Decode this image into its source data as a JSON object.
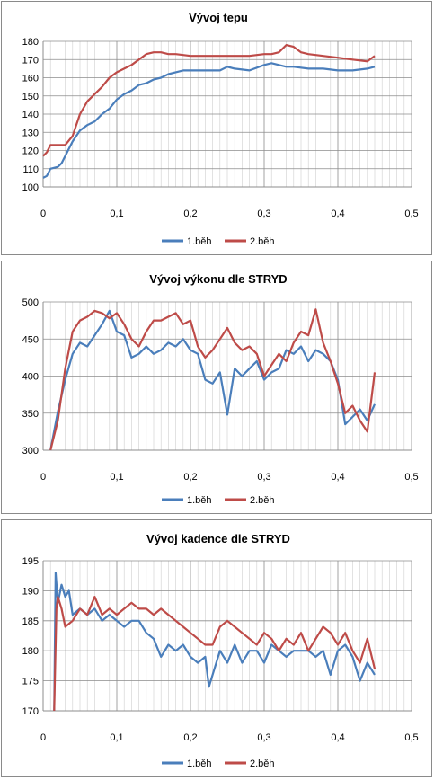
{
  "chart_data": [
    {
      "type": "line",
      "title": "Vývoj tepu",
      "xlim": [
        0,
        0.5
      ],
      "ylim": [
        100,
        180
      ],
      "xticks": [
        "0",
        "0,1",
        "0,2",
        "0,3",
        "0,4",
        "0,5"
      ],
      "yticks": [
        "100",
        "110",
        "120",
        "130",
        "140",
        "150",
        "160",
        "170",
        "180"
      ],
      "grid": true,
      "legend": "bottom",
      "series": [
        {
          "name": "1.běh",
          "color": "#4a7ebb",
          "x": [
            0,
            0.005,
            0.01,
            0.02,
            0.025,
            0.03,
            0.04,
            0.05,
            0.06,
            0.07,
            0.08,
            0.09,
            0.1,
            0.11,
            0.12,
            0.13,
            0.14,
            0.15,
            0.16,
            0.17,
            0.18,
            0.19,
            0.2,
            0.22,
            0.24,
            0.25,
            0.26,
            0.28,
            0.3,
            0.31,
            0.32,
            0.33,
            0.34,
            0.36,
            0.38,
            0.4,
            0.42,
            0.44,
            0.45
          ],
          "y": [
            105,
            106,
            110,
            111,
            113,
            117,
            125,
            131,
            134,
            136,
            140,
            143,
            148,
            151,
            153,
            156,
            157,
            159,
            160,
            162,
            163,
            164,
            164,
            164,
            164,
            166,
            165,
            164,
            167,
            168,
            167,
            166,
            166,
            165,
            165,
            164,
            164,
            165,
            166
          ]
        },
        {
          "name": "2.běh",
          "color": "#be4b48",
          "x": [
            0,
            0.005,
            0.01,
            0.02,
            0.03,
            0.04,
            0.05,
            0.06,
            0.07,
            0.08,
            0.09,
            0.1,
            0.11,
            0.12,
            0.13,
            0.14,
            0.15,
            0.16,
            0.17,
            0.18,
            0.2,
            0.22,
            0.24,
            0.26,
            0.28,
            0.3,
            0.31,
            0.32,
            0.33,
            0.34,
            0.35,
            0.36,
            0.38,
            0.4,
            0.42,
            0.44,
            0.45
          ],
          "y": [
            117,
            119,
            123,
            123,
            123,
            128,
            140,
            147,
            151,
            155,
            160,
            163,
            165,
            167,
            170,
            173,
            174,
            174,
            173,
            173,
            172,
            172,
            172,
            172,
            172,
            173,
            173,
            174,
            178,
            177,
            174,
            173,
            172,
            171,
            170,
            169,
            172
          ]
        }
      ]
    },
    {
      "type": "line",
      "title": "Vývoj výkonu dle STRYD",
      "xlim": [
        0,
        0.5
      ],
      "ylim": [
        300,
        500
      ],
      "xticks": [
        "0",
        "0,1",
        "0,2",
        "0,3",
        "0,4",
        "0,5"
      ],
      "yticks": [
        "300",
        "350",
        "400",
        "450",
        "500"
      ],
      "grid": true,
      "legend": "bottom",
      "series": [
        {
          "name": "1.běh",
          "color": "#4a7ebb",
          "x": [
            0.01,
            0.02,
            0.03,
            0.04,
            0.05,
            0.06,
            0.07,
            0.08,
            0.09,
            0.1,
            0.11,
            0.12,
            0.13,
            0.14,
            0.15,
            0.16,
            0.17,
            0.18,
            0.19,
            0.2,
            0.21,
            0.22,
            0.23,
            0.24,
            0.25,
            0.26,
            0.27,
            0.28,
            0.29,
            0.3,
            0.31,
            0.32,
            0.33,
            0.34,
            0.35,
            0.36,
            0.37,
            0.38,
            0.39,
            0.4,
            0.41,
            0.42,
            0.43,
            0.44,
            0.45
          ],
          "y": [
            300,
            352,
            395,
            430,
            445,
            440,
            455,
            470,
            488,
            460,
            455,
            425,
            430,
            440,
            430,
            435,
            445,
            440,
            450,
            435,
            430,
            395,
            390,
            405,
            348,
            410,
            400,
            410,
            420,
            395,
            405,
            410,
            435,
            430,
            440,
            420,
            435,
            430,
            420,
            395,
            335,
            345,
            355,
            340,
            362
          ]
        },
        {
          "name": "2.běh",
          "color": "#be4b48",
          "x": [
            0.01,
            0.02,
            0.03,
            0.04,
            0.05,
            0.06,
            0.07,
            0.08,
            0.09,
            0.1,
            0.11,
            0.12,
            0.13,
            0.14,
            0.15,
            0.16,
            0.17,
            0.18,
            0.19,
            0.2,
            0.21,
            0.22,
            0.23,
            0.24,
            0.25,
            0.26,
            0.27,
            0.28,
            0.29,
            0.3,
            0.31,
            0.32,
            0.33,
            0.34,
            0.35,
            0.36,
            0.37,
            0.38,
            0.39,
            0.4,
            0.41,
            0.42,
            0.43,
            0.44,
            0.45
          ],
          "y": [
            300,
            340,
            410,
            460,
            475,
            480,
            488,
            485,
            478,
            485,
            470,
            450,
            440,
            460,
            475,
            475,
            480,
            485,
            470,
            475,
            440,
            425,
            435,
            450,
            465,
            445,
            435,
            440,
            430,
            400,
            415,
            430,
            420,
            445,
            460,
            455,
            490,
            445,
            420,
            390,
            350,
            360,
            340,
            325,
            405
          ]
        }
      ]
    },
    {
      "type": "line",
      "title": "Vývoj kadence dle STRYD",
      "xlim": [
        0,
        0.5
      ],
      "ylim": [
        170,
        195
      ],
      "xticks": [
        "0",
        "0,1",
        "0,2",
        "0,3",
        "0,4",
        "0,5"
      ],
      "yticks": [
        "170",
        "175",
        "180",
        "185",
        "190",
        "195"
      ],
      "grid": true,
      "legend": "bottom",
      "series": [
        {
          "name": "1.běh",
          "color": "#4a7ebb",
          "x": [
            0.015,
            0.017,
            0.02,
            0.025,
            0.03,
            0.035,
            0.04,
            0.05,
            0.06,
            0.07,
            0.08,
            0.09,
            0.1,
            0.11,
            0.12,
            0.13,
            0.14,
            0.15,
            0.16,
            0.17,
            0.18,
            0.19,
            0.2,
            0.21,
            0.22,
            0.225,
            0.23,
            0.24,
            0.25,
            0.26,
            0.27,
            0.28,
            0.29,
            0.3,
            0.31,
            0.32,
            0.33,
            0.34,
            0.35,
            0.36,
            0.37,
            0.38,
            0.39,
            0.4,
            0.41,
            0.42,
            0.43,
            0.44,
            0.45
          ],
          "y": [
            170,
            193,
            188,
            191,
            189,
            190,
            186,
            187,
            186,
            187,
            185,
            186,
            185,
            184,
            185,
            185,
            183,
            182,
            179,
            181,
            180,
            181,
            179,
            178,
            179,
            174,
            176,
            180,
            178,
            181,
            178,
            180,
            180,
            178,
            181,
            180,
            179,
            180,
            180,
            180,
            179,
            180,
            176,
            180,
            181,
            179,
            175,
            178,
            176
          ]
        },
        {
          "name": "2.běh",
          "color": "#be4b48",
          "x": [
            0.015,
            0.018,
            0.02,
            0.025,
            0.03,
            0.04,
            0.05,
            0.06,
            0.07,
            0.08,
            0.09,
            0.1,
            0.11,
            0.12,
            0.13,
            0.14,
            0.15,
            0.16,
            0.17,
            0.18,
            0.19,
            0.2,
            0.21,
            0.22,
            0.23,
            0.24,
            0.25,
            0.26,
            0.27,
            0.28,
            0.29,
            0.3,
            0.31,
            0.32,
            0.33,
            0.34,
            0.35,
            0.36,
            0.37,
            0.38,
            0.39,
            0.4,
            0.41,
            0.42,
            0.43,
            0.44,
            0.45
          ],
          "y": [
            170,
            187,
            189,
            187,
            184,
            185,
            187,
            186,
            189,
            186,
            187,
            186,
            187,
            188,
            187,
            187,
            186,
            187,
            186,
            185,
            184,
            183,
            182,
            181,
            181,
            184,
            185,
            184,
            183,
            182,
            181,
            183,
            182,
            180,
            182,
            181,
            183,
            180,
            182,
            184,
            183,
            181,
            183,
            180,
            178,
            182,
            177
          ]
        }
      ]
    }
  ]
}
